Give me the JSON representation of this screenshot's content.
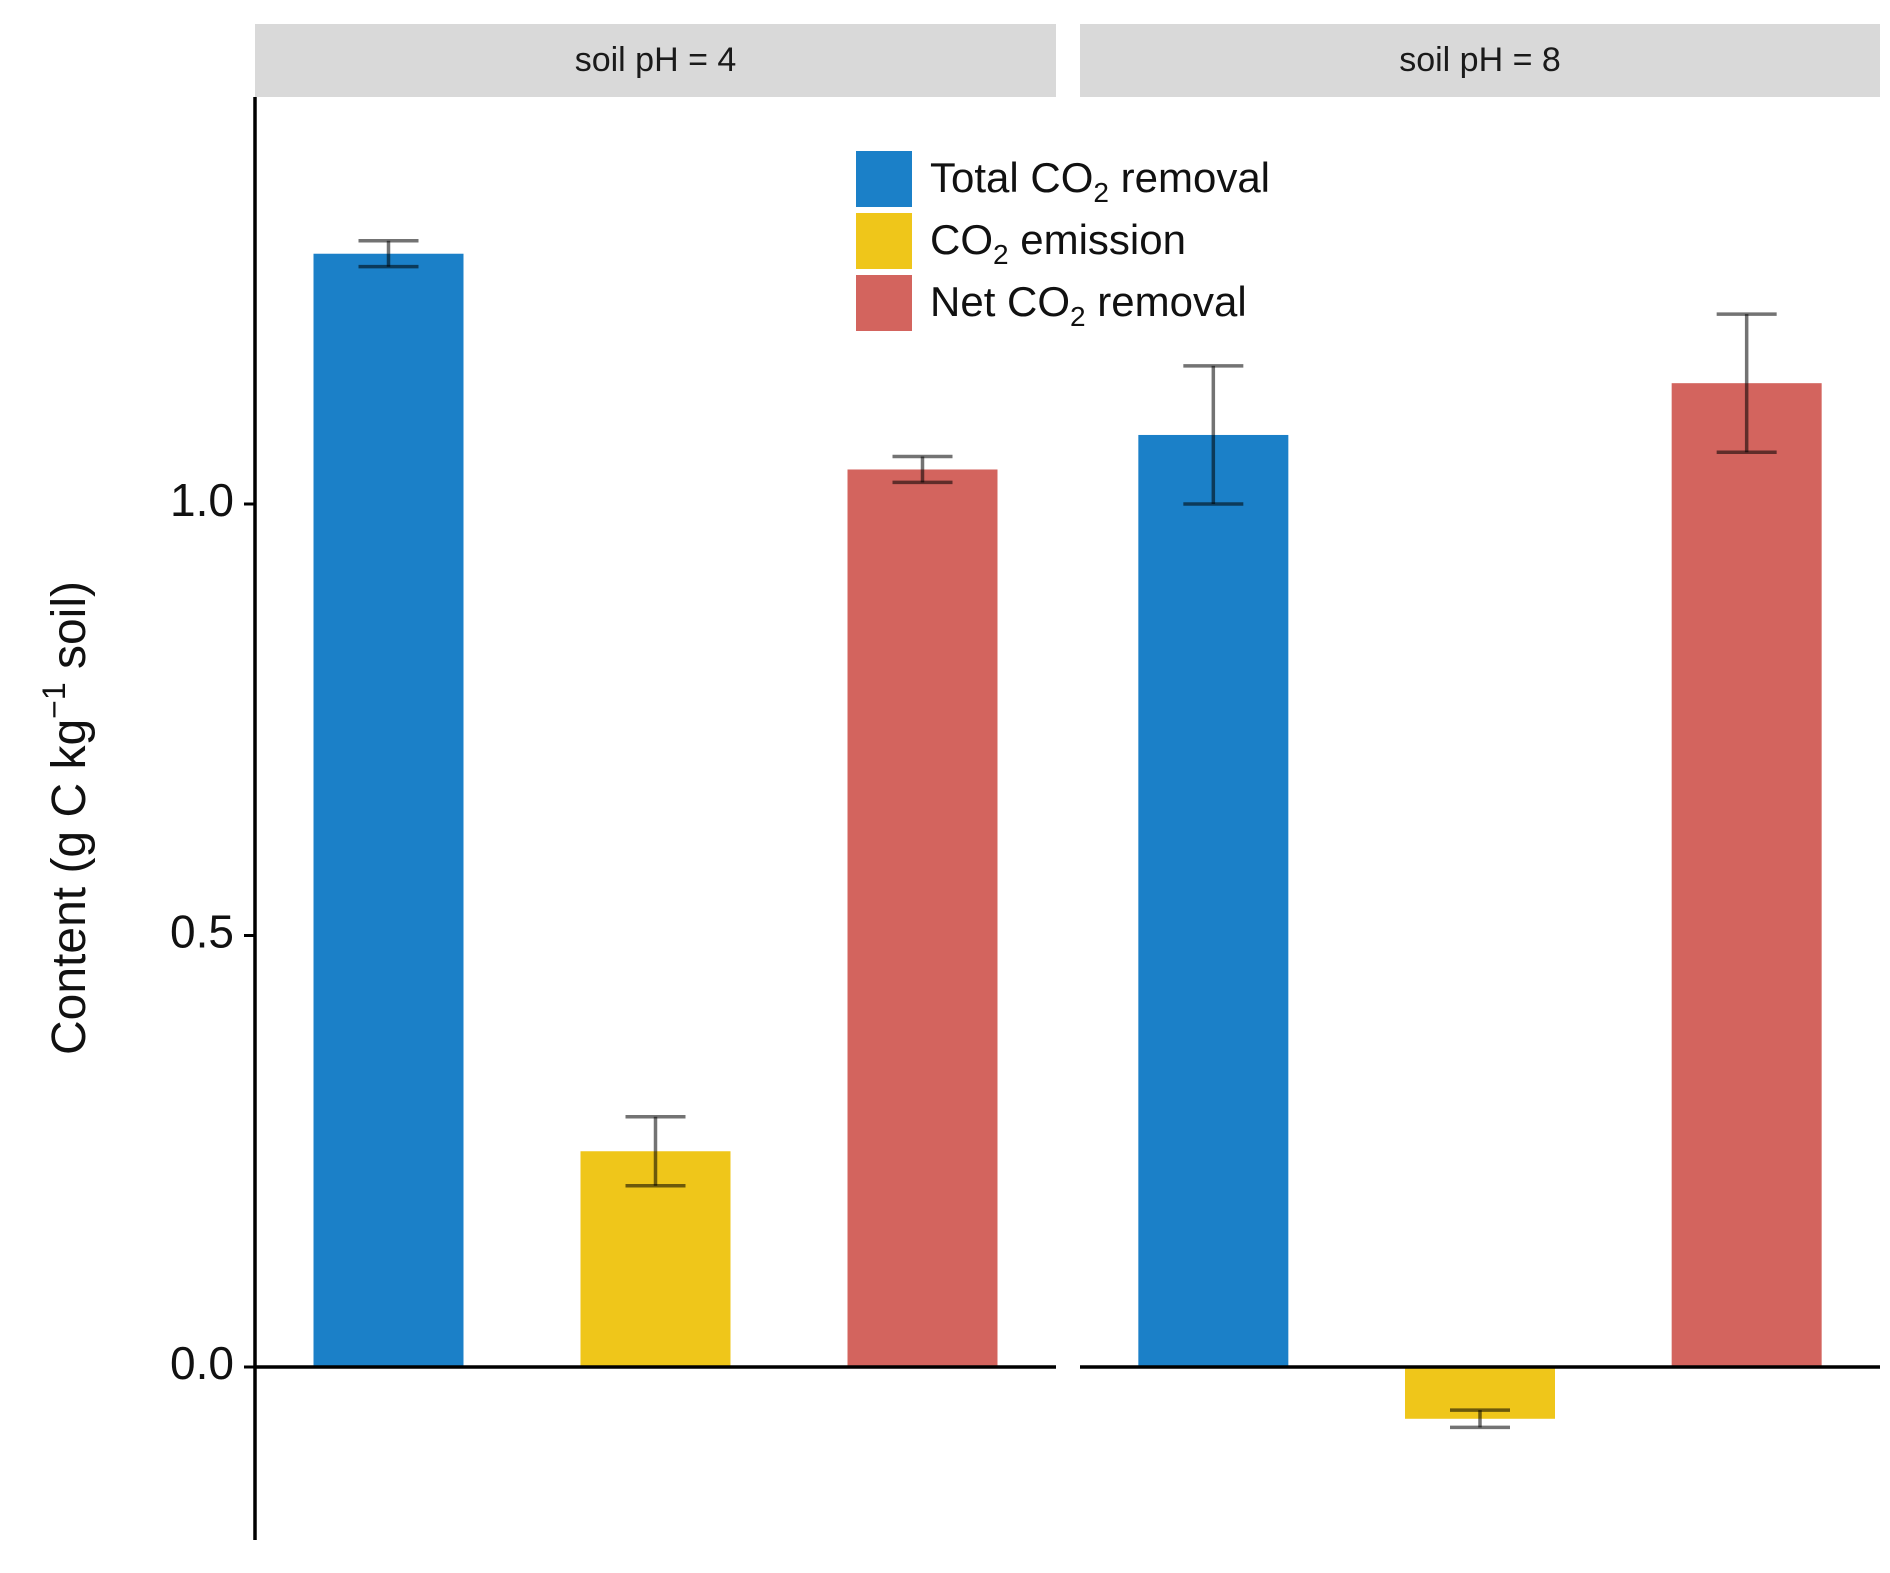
{
  "chart_data": {
    "type": "bar",
    "ylabel": {
      "pre": "Content (g C kg",
      "sup": "−1",
      "post": " soil)"
    },
    "ylim": [
      -0.2,
      1.475
    ],
    "yticks": [
      0.0,
      0.5,
      1.0
    ],
    "yticklabels": [
      "0.0",
      "0.5",
      "1.0"
    ],
    "zero_line": true,
    "legend": {
      "position": "top-center",
      "entries": [
        {
          "pre": "Total CO",
          "sub": "2",
          "post": " removal"
        },
        {
          "pre": " CO",
          "sub": "2",
          "post": " emission"
        },
        {
          "pre": "Net CO",
          "sub": "2",
          "post": " removal"
        }
      ]
    },
    "series": [
      {
        "name": "Total CO2 removal",
        "color": "#1b80c8"
      },
      {
        "name": "CO2 emission",
        "color": "#efc61a"
      },
      {
        "name": "Net CO2 removal",
        "color": "#d3645e"
      }
    ],
    "facets": [
      {
        "label": "soil pH = 4",
        "values": [
          1.29,
          0.25,
          1.04
        ],
        "errors": [
          [
            1.275,
            1.305
          ],
          [
            0.21,
            0.29
          ],
          [
            1.025,
            1.055
          ]
        ]
      },
      {
        "label": "soil pH = 8",
        "values": [
          1.08,
          -0.06,
          1.14
        ],
        "errors": [
          [
            1.0,
            1.16
          ],
          [
            -0.07,
            -0.05
          ],
          [
            1.06,
            1.22
          ]
        ]
      }
    ]
  }
}
